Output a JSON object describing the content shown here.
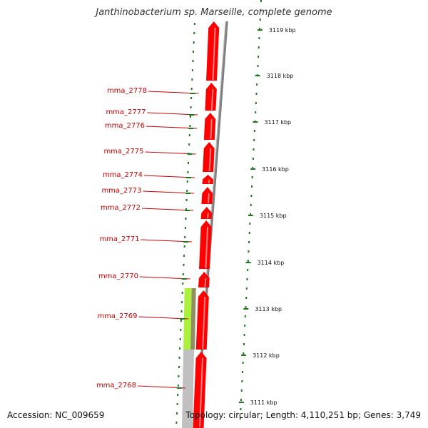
{
  "title": "Janthinobacterium sp. Marseille, complete genome",
  "accession": "Accession: NC_009659",
  "topology": "Topology: circular; Length: 4,110,251 bp; Genes: 3,749",
  "colors": {
    "gene": "#ff0000",
    "label": "#cc0000",
    "backbone": "#808080",
    "ticks": "#1a7a1a",
    "rna_light": "#aaf03c",
    "rna_dark": "#8f8f62",
    "grey_feature": "#c0c0c0"
  },
  "scale_ticks": [
    "3119 kbp",
    "3118 kbp",
    "3117 kbp",
    "3116 kbp",
    "3115 kbp",
    "3114 kbp",
    "3113 kbp",
    "3112 kbp",
    "3111 kbp"
  ],
  "genes": [
    "mma_2778",
    "mma_2777",
    "mma_2776",
    "mma_2775",
    "mma_2774",
    "mma_2773",
    "mma_2772",
    "mma_2771",
    "mma_2770",
    "mma_2769",
    "mma_2768"
  ]
}
